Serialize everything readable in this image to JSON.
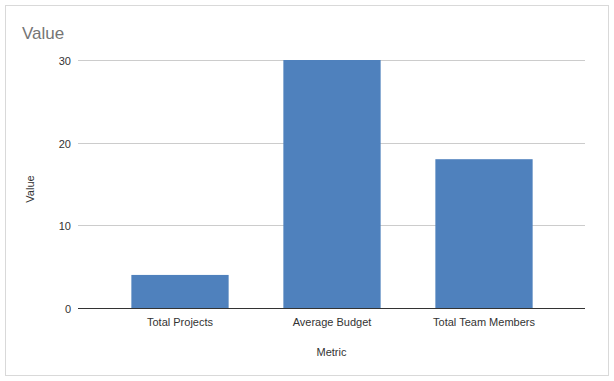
{
  "chart_data": {
    "type": "bar",
    "title": "Value",
    "x_label": "Metric",
    "y_label": "Value",
    "categories": [
      "Total Projects",
      "Average Budget",
      "Total Team Members"
    ],
    "values": [
      4,
      30,
      18
    ],
    "color": "#4f81bd",
    "ylim": [
      0,
      30
    ],
    "yticks": [
      0,
      10,
      20,
      30
    ],
    "grid": true
  }
}
